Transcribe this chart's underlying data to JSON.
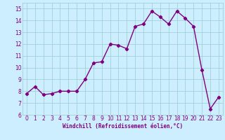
{
  "x": [
    0,
    1,
    2,
    3,
    4,
    5,
    6,
    7,
    8,
    9,
    10,
    11,
    12,
    13,
    14,
    15,
    16,
    17,
    18,
    19,
    20,
    21,
    22,
    23
  ],
  "y": [
    7.8,
    8.4,
    7.7,
    7.8,
    8.0,
    8.0,
    8.0,
    9.0,
    10.4,
    10.5,
    12.0,
    11.9,
    11.6,
    13.5,
    13.7,
    14.8,
    14.3,
    13.7,
    14.8,
    14.2,
    13.5,
    9.8,
    6.5,
    7.5
  ],
  "xlim": [
    -0.5,
    23.5
  ],
  "ylim": [
    6,
    15.5
  ],
  "yticks": [
    6,
    7,
    8,
    9,
    10,
    11,
    12,
    13,
    14,
    15
  ],
  "xticks": [
    0,
    1,
    2,
    3,
    4,
    5,
    6,
    7,
    8,
    9,
    10,
    11,
    12,
    13,
    14,
    15,
    16,
    17,
    18,
    19,
    20,
    21,
    22,
    23
  ],
  "xlabel": "Windchill (Refroidissement éolien,°C)",
  "line_color": "#800080",
  "bg_color": "#cceeff",
  "grid_color": "#99cccc",
  "marker": "D",
  "markersize": 2.2,
  "linewidth": 1.0
}
